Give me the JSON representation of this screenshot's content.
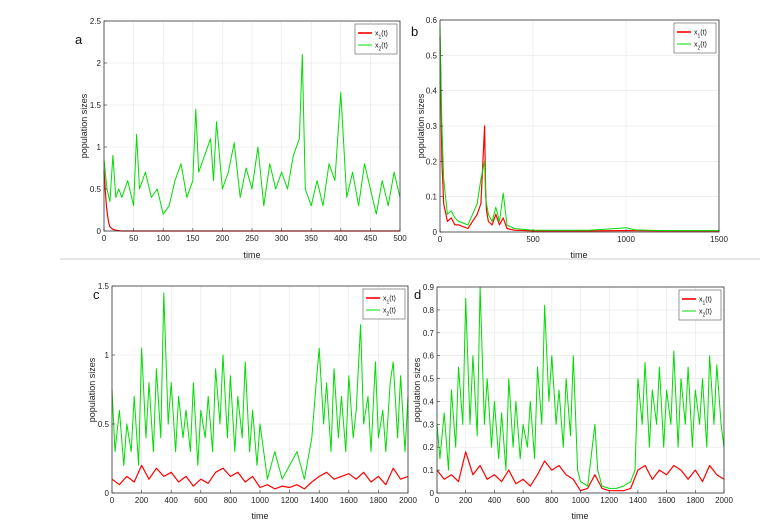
{
  "chart_data": [
    {
      "panel_label": "a",
      "type": "line",
      "xlabel": "time",
      "ylabel": "population sizes",
      "xlim": [
        0,
        500
      ],
      "ylim": [
        0,
        2.5
      ],
      "xticks": [
        0,
        50,
        100,
        150,
        200,
        250,
        300,
        350,
        400,
        450,
        500
      ],
      "yticks": [
        0,
        0.5,
        1,
        1.5,
        2,
        2.5
      ],
      "ytick_labels": [
        "0",
        "0.5",
        "1",
        "1.5",
        "2",
        "2.5"
      ],
      "grid": true,
      "legend_position": "top-right",
      "series": [
        {
          "name": "x1(t)",
          "legend_main": "x",
          "legend_sub": "1",
          "legend_tail": "(t)",
          "color": "#ff0000",
          "x": [
            0,
            2,
            4,
            6,
            8,
            10,
            15,
            20,
            30,
            50,
            100,
            200,
            300,
            400,
            500
          ],
          "y": [
            0.72,
            0.5,
            0.3,
            0.18,
            0.1,
            0.05,
            0.02,
            0.01,
            0.0,
            0.0,
            0.0,
            0.0,
            0.0,
            0.0,
            0.0
          ]
        },
        {
          "name": "x2(t)",
          "legend_main": "x",
          "legend_sub": "2",
          "legend_tail": "(t)",
          "color": "#00dd00",
          "x": [
            0,
            5,
            10,
            15,
            20,
            25,
            30,
            40,
            50,
            55,
            60,
            70,
            80,
            90,
            100,
            110,
            120,
            130,
            140,
            150,
            155,
            160,
            170,
            180,
            185,
            190,
            200,
            210,
            220,
            230,
            240,
            250,
            260,
            270,
            280,
            290,
            300,
            310,
            320,
            330,
            335,
            340,
            350,
            360,
            370,
            380,
            390,
            400,
            410,
            420,
            430,
            440,
            450,
            460,
            470,
            480,
            490,
            500
          ],
          "y": [
            0.85,
            0.5,
            0.35,
            0.9,
            0.4,
            0.5,
            0.4,
            0.6,
            0.3,
            1.15,
            0.5,
            0.7,
            0.4,
            0.5,
            0.2,
            0.3,
            0.6,
            0.8,
            0.4,
            0.6,
            1.45,
            0.7,
            0.9,
            1.1,
            0.6,
            1.3,
            0.5,
            0.7,
            1.05,
            0.4,
            0.75,
            0.5,
            1.0,
            0.3,
            0.8,
            0.5,
            0.7,
            0.5,
            0.9,
            1.1,
            2.1,
            0.5,
            0.3,
            0.6,
            0.3,
            0.8,
            0.6,
            1.65,
            0.4,
            0.7,
            0.3,
            0.8,
            0.5,
            0.2,
            0.6,
            0.3,
            0.7,
            0.4
          ]
        }
      ]
    },
    {
      "panel_label": "b",
      "type": "line",
      "xlabel": "time",
      "ylabel": "population sizes",
      "xlim": [
        0,
        1500
      ],
      "ylim": [
        0,
        0.6
      ],
      "xticks": [
        0,
        500,
        1000,
        1500
      ],
      "yticks": [
        0,
        0.1,
        0.2,
        0.3,
        0.4,
        0.5,
        0.6
      ],
      "ytick_labels": [
        "0",
        "0.1",
        "0.2",
        "0.3",
        "0.4",
        "0.5",
        "0.6"
      ],
      "grid": true,
      "legend_position": "top-right",
      "series": [
        {
          "name": "x1(t)",
          "legend_main": "x",
          "legend_sub": "1",
          "legend_tail": "(t)",
          "color": "#ff0000",
          "x": [
            0,
            5,
            10,
            20,
            40,
            60,
            80,
            100,
            150,
            200,
            220,
            240,
            245,
            250,
            260,
            280,
            300,
            320,
            340,
            360,
            400,
            500,
            600,
            800,
            1000,
            1200,
            1500
          ],
          "y": [
            0.55,
            0.4,
            0.2,
            0.08,
            0.03,
            0.04,
            0.02,
            0.02,
            0.01,
            0.05,
            0.08,
            0.3,
            0.12,
            0.06,
            0.03,
            0.02,
            0.05,
            0.02,
            0.04,
            0.01,
            0.005,
            0.003,
            0.003,
            0.003,
            0.004,
            0.003,
            0.003
          ]
        },
        {
          "name": "x2(t)",
          "legend_main": "x",
          "legend_sub": "2",
          "legend_tail": "(t)",
          "color": "#00dd00",
          "x": [
            0,
            5,
            10,
            20,
            40,
            60,
            80,
            100,
            150,
            200,
            220,
            240,
            245,
            250,
            260,
            280,
            300,
            320,
            340,
            360,
            400,
            500,
            600,
            800,
            950,
            1000,
            1050,
            1200,
            1500
          ],
          "y": [
            0.58,
            0.45,
            0.3,
            0.15,
            0.05,
            0.06,
            0.04,
            0.03,
            0.02,
            0.08,
            0.15,
            0.2,
            0.1,
            0.08,
            0.05,
            0.03,
            0.07,
            0.03,
            0.11,
            0.02,
            0.01,
            0.005,
            0.005,
            0.005,
            0.01,
            0.012,
            0.006,
            0.004,
            0.004
          ]
        }
      ]
    },
    {
      "panel_label": "c",
      "type": "line",
      "xlabel": "time",
      "ylabel": "population sizes",
      "xlim": [
        0,
        2000
      ],
      "ylim": [
        0,
        1.5
      ],
      "xticks": [
        0,
        200,
        400,
        600,
        800,
        1000,
        1200,
        1400,
        1600,
        1800,
        2000
      ],
      "yticks": [
        0,
        0.5,
        1,
        1.5
      ],
      "ytick_labels": [
        "0",
        "0.5",
        "1",
        "1.5"
      ],
      "grid": true,
      "legend_position": "top-right",
      "series": [
        {
          "name": "x1(t)",
          "legend_main": "x",
          "legend_sub": "1",
          "legend_tail": "(t)",
          "color": "#ff0000",
          "x": [
            0,
            50,
            100,
            150,
            200,
            250,
            300,
            350,
            400,
            450,
            500,
            550,
            600,
            650,
            700,
            750,
            800,
            850,
            900,
            950,
            1000,
            1050,
            1100,
            1150,
            1200,
            1250,
            1300,
            1350,
            1400,
            1450,
            1500,
            1550,
            1600,
            1650,
            1700,
            1750,
            1800,
            1850,
            1900,
            1950,
            2000
          ],
          "y": [
            0.1,
            0.06,
            0.12,
            0.08,
            0.2,
            0.1,
            0.18,
            0.12,
            0.15,
            0.08,
            0.12,
            0.05,
            0.1,
            0.07,
            0.15,
            0.18,
            0.12,
            0.15,
            0.08,
            0.12,
            0.04,
            0.06,
            0.03,
            0.05,
            0.04,
            0.06,
            0.03,
            0.08,
            0.12,
            0.15,
            0.1,
            0.12,
            0.14,
            0.1,
            0.15,
            0.08,
            0.12,
            0.06,
            0.18,
            0.1,
            0.12
          ]
        },
        {
          "name": "x2(t)",
          "legend_main": "x",
          "legend_sub": "2",
          "legend_tail": "(t)",
          "color": "#00dd00",
          "x": [
            0,
            20,
            50,
            80,
            100,
            130,
            150,
            180,
            200,
            230,
            250,
            280,
            300,
            330,
            350,
            380,
            400,
            430,
            450,
            480,
            500,
            530,
            550,
            580,
            600,
            630,
            650,
            680,
            700,
            730,
            750,
            780,
            800,
            830,
            850,
            880,
            900,
            930,
            950,
            980,
            1000,
            1050,
            1100,
            1150,
            1200,
            1250,
            1300,
            1350,
            1380,
            1400,
            1430,
            1450,
            1480,
            1500,
            1530,
            1550,
            1580,
            1600,
            1630,
            1650,
            1680,
            1700,
            1730,
            1750,
            1780,
            1800,
            1830,
            1850,
            1880,
            1900,
            1930,
            1950,
            1980,
            2000
          ],
          "y": [
            0.75,
            0.3,
            0.6,
            0.2,
            0.5,
            0.3,
            0.7,
            0.2,
            1.05,
            0.4,
            0.8,
            0.3,
            0.9,
            0.4,
            1.45,
            0.5,
            0.8,
            0.3,
            0.7,
            0.4,
            0.6,
            0.3,
            0.8,
            0.2,
            0.6,
            0.4,
            0.7,
            0.3,
            0.9,
            0.5,
            1.0,
            0.4,
            0.85,
            0.3,
            0.7,
            0.4,
            0.95,
            0.3,
            0.6,
            0.2,
            0.5,
            0.1,
            0.3,
            0.1,
            0.2,
            0.3,
            0.1,
            0.4,
            0.8,
            1.05,
            0.5,
            0.8,
            0.3,
            0.9,
            0.4,
            0.7,
            0.3,
            0.85,
            0.4,
            0.6,
            1.22,
            0.5,
            0.7,
            0.3,
            0.95,
            0.4,
            0.6,
            0.3,
            0.8,
            0.95,
            0.4,
            0.85,
            0.3,
            0.7
          ]
        }
      ]
    },
    {
      "panel_label": "d",
      "type": "line",
      "xlabel": "time",
      "ylabel": "population sizes",
      "xlim": [
        0,
        2000
      ],
      "ylim": [
        0,
        0.9
      ],
      "xticks": [
        0,
        200,
        400,
        600,
        800,
        1000,
        1200,
        1400,
        1600,
        1800,
        2000
      ],
      "yticks": [
        0,
        0.1,
        0.2,
        0.3,
        0.4,
        0.5,
        0.6,
        0.7,
        0.8,
        0.9
      ],
      "ytick_labels": [
        "0",
        "0.1",
        "0.2",
        "0.3",
        "0.4",
        "0.5",
        "0.6",
        "0.7",
        "0.8",
        "0.9"
      ],
      "grid": true,
      "legend_position": "top-right",
      "series": [
        {
          "name": "x1(t)",
          "legend_main": "x",
          "legend_sub": "1",
          "legend_tail": "(t)",
          "color": "#ff0000",
          "x": [
            0,
            50,
            100,
            150,
            200,
            250,
            300,
            350,
            400,
            450,
            500,
            550,
            600,
            650,
            700,
            750,
            800,
            850,
            900,
            950,
            1000,
            1050,
            1100,
            1150,
            1200,
            1250,
            1300,
            1350,
            1400,
            1450,
            1500,
            1550,
            1600,
            1650,
            1700,
            1750,
            1800,
            1850,
            1900,
            1950,
            2000
          ],
          "y": [
            0.1,
            0.06,
            0.08,
            0.05,
            0.18,
            0.08,
            0.12,
            0.06,
            0.08,
            0.05,
            0.1,
            0.04,
            0.06,
            0.03,
            0.08,
            0.14,
            0.1,
            0.12,
            0.08,
            0.06,
            0.01,
            0.02,
            0.08,
            0.02,
            0.01,
            0.01,
            0.01,
            0.02,
            0.1,
            0.12,
            0.06,
            0.1,
            0.08,
            0.12,
            0.1,
            0.06,
            0.1,
            0.05,
            0.12,
            0.08,
            0.06
          ]
        },
        {
          "name": "x2(t)",
          "legend_main": "x",
          "legend_sub": "2",
          "legend_tail": "(t)",
          "color": "#00dd00",
          "x": [
            0,
            20,
            50,
            80,
            100,
            130,
            150,
            180,
            200,
            230,
            250,
            280,
            300,
            330,
            350,
            380,
            400,
            430,
            450,
            480,
            500,
            530,
            550,
            580,
            600,
            630,
            650,
            680,
            700,
            730,
            750,
            780,
            800,
            830,
            850,
            880,
            900,
            930,
            950,
            980,
            1000,
            1050,
            1100,
            1120,
            1150,
            1200,
            1250,
            1300,
            1350,
            1380,
            1400,
            1430,
            1450,
            1480,
            1500,
            1530,
            1550,
            1580,
            1600,
            1630,
            1650,
            1680,
            1700,
            1730,
            1750,
            1780,
            1800,
            1830,
            1850,
            1880,
            1900,
            1930,
            1950,
            1980,
            2000
          ],
          "y": [
            0.3,
            0.15,
            0.35,
            0.1,
            0.45,
            0.2,
            0.55,
            0.3,
            0.85,
            0.3,
            0.6,
            0.25,
            0.9,
            0.3,
            0.5,
            0.2,
            0.4,
            0.15,
            0.35,
            0.1,
            0.5,
            0.2,
            0.4,
            0.15,
            0.3,
            0.2,
            0.4,
            0.15,
            0.55,
            0.3,
            0.82,
            0.4,
            0.6,
            0.3,
            0.45,
            0.2,
            0.5,
            0.25,
            0.6,
            0.1,
            0.05,
            0.03,
            0.3,
            0.1,
            0.03,
            0.02,
            0.02,
            0.03,
            0.05,
            0.1,
            0.5,
            0.3,
            0.57,
            0.2,
            0.45,
            0.3,
            0.55,
            0.2,
            0.45,
            0.3,
            0.62,
            0.2,
            0.5,
            0.3,
            0.55,
            0.2,
            0.45,
            0.3,
            0.5,
            0.2,
            0.6,
            0.3,
            0.56,
            0.3,
            0.2
          ]
        }
      ]
    }
  ]
}
